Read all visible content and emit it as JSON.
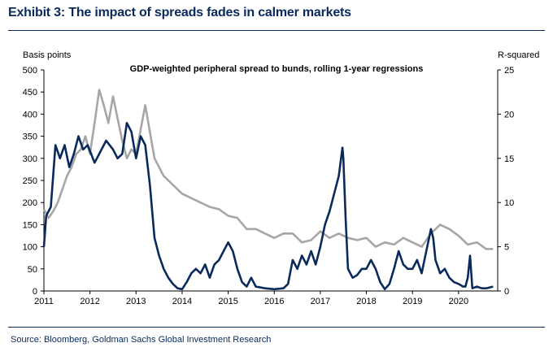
{
  "header": {
    "title": "Exhibit 3: The impact of spreads fades in calmer markets"
  },
  "footer": {
    "source": "Source: Bloomberg, Goldman Sachs Global Investment Research"
  },
  "chart_data": {
    "type": "line",
    "title": "GDP-weighted peripheral spread to bunds, rolling 1-year regressions",
    "ylabel_left": "Basis points",
    "ylabel_right": "R-squared",
    "xlim": [
      2011,
      2020.85
    ],
    "ylim_left": [
      0,
      500
    ],
    "ylim_right": [
      0,
      25
    ],
    "x_ticks": [
      2011,
      2012,
      2013,
      2014,
      2015,
      2016,
      2017,
      2018,
      2019,
      2020
    ],
    "y_ticks_left": [
      0,
      50,
      100,
      150,
      200,
      250,
      300,
      350,
      400,
      450,
      500
    ],
    "y_ticks_right": [
      0,
      5,
      10,
      15,
      20,
      25
    ],
    "grid": false,
    "colors": {
      "spread": "#a6a6a6",
      "rsquared": "#0a2a5c"
    },
    "series": [
      {
        "name": "GDP-weighted peripheral spread to bunds (bp, lhs)",
        "axis": "left",
        "x": [
          2011.0,
          2011.1,
          2011.2,
          2011.3,
          2011.4,
          2011.5,
          2011.6,
          2011.7,
          2011.8,
          2011.9,
          2012.0,
          2012.1,
          2012.2,
          2012.3,
          2012.4,
          2012.5,
          2012.6,
          2012.7,
          2012.8,
          2012.9,
          2013.0,
          2013.2,
          2013.4,
          2013.6,
          2013.8,
          2014.0,
          2014.2,
          2014.4,
          2014.6,
          2014.8,
          2015.0,
          2015.2,
          2015.4,
          2015.6,
          2015.8,
          2016.0,
          2016.2,
          2016.4,
          2016.6,
          2016.8,
          2017.0,
          2017.2,
          2017.4,
          2017.6,
          2017.8,
          2018.0,
          2018.2,
          2018.4,
          2018.6,
          2018.8,
          2019.0,
          2019.2,
          2019.4,
          2019.6,
          2019.8,
          2020.0,
          2020.2,
          2020.4,
          2020.6,
          2020.75
        ],
        "values": [
          185,
          165,
          180,
          200,
          230,
          260,
          280,
          310,
          320,
          350,
          310,
          380,
          455,
          420,
          380,
          440,
          390,
          340,
          300,
          320,
          310,
          420,
          300,
          260,
          240,
          220,
          210,
          200,
          190,
          185,
          170,
          165,
          140,
          140,
          130,
          120,
          130,
          130,
          110,
          115,
          135,
          120,
          130,
          120,
          115,
          120,
          100,
          110,
          105,
          120,
          110,
          100,
          130,
          150,
          140,
          125,
          105,
          110,
          95,
          95
        ]
      },
      {
        "name": "R-squared (rhs)",
        "axis": "right",
        "x": [
          2011.0,
          2011.05,
          2011.15,
          2011.25,
          2011.35,
          2011.45,
          2011.55,
          2011.65,
          2011.75,
          2011.85,
          2011.95,
          2012.1,
          2012.2,
          2012.35,
          2012.5,
          2012.6,
          2012.7,
          2012.8,
          2012.9,
          2013.0,
          2013.1,
          2013.2,
          2013.3,
          2013.4,
          2013.5,
          2013.6,
          2013.7,
          2013.8,
          2013.9,
          2014.0,
          2014.1,
          2014.2,
          2014.3,
          2014.4,
          2014.5,
          2014.6,
          2014.7,
          2014.8,
          2014.9,
          2015.0,
          2015.1,
          2015.2,
          2015.3,
          2015.4,
          2015.5,
          2015.6,
          2015.8,
          2016.0,
          2016.2,
          2016.3,
          2016.4,
          2016.5,
          2016.6,
          2016.7,
          2016.8,
          2016.9,
          2017.0,
          2017.1,
          2017.2,
          2017.3,
          2017.4,
          2017.45,
          2017.48,
          2017.5,
          2017.55,
          2017.6,
          2017.7,
          2017.8,
          2017.9,
          2018.0,
          2018.1,
          2018.2,
          2018.3,
          2018.4,
          2018.5,
          2018.6,
          2018.7,
          2018.8,
          2018.9,
          2019.0,
          2019.1,
          2019.2,
          2019.3,
          2019.4,
          2019.45,
          2019.5,
          2019.6,
          2019.7,
          2019.8,
          2019.9,
          2020.0,
          2020.1,
          2020.15,
          2020.2,
          2020.25,
          2020.3,
          2020.4,
          2020.5,
          2020.6,
          2020.75
        ],
        "values": [
          5.0,
          8.5,
          9.5,
          16.5,
          15.0,
          16.5,
          14.0,
          15.5,
          17.5,
          16.0,
          16.5,
          14.5,
          15.5,
          17.0,
          16.0,
          15.0,
          15.5,
          19.0,
          18.0,
          15.0,
          17.5,
          16.5,
          12.0,
          6.0,
          4.0,
          2.5,
          1.5,
          0.8,
          0.3,
          0.2,
          1.0,
          2.0,
          2.5,
          2.0,
          3.0,
          1.5,
          3.0,
          3.5,
          4.5,
          5.5,
          4.5,
          2.5,
          1.0,
          0.5,
          1.5,
          0.5,
          0.3,
          0.2,
          0.3,
          0.8,
          3.5,
          2.5,
          4.0,
          3.0,
          4.5,
          3.0,
          5.0,
          7.5,
          9.0,
          11.0,
          13.0,
          15.0,
          16.2,
          15.0,
          8.0,
          2.5,
          1.5,
          1.8,
          2.5,
          2.5,
          3.5,
          2.5,
          1.0,
          0.2,
          0.8,
          2.5,
          4.5,
          3.0,
          2.5,
          2.5,
          3.5,
          2.0,
          4.5,
          7.0,
          6.0,
          3.5,
          2.0,
          2.5,
          1.5,
          1.0,
          0.8,
          0.5,
          0.5,
          1.5,
          4.0,
          0.3,
          0.5,
          0.3,
          0.3,
          0.5
        ]
      }
    ]
  }
}
